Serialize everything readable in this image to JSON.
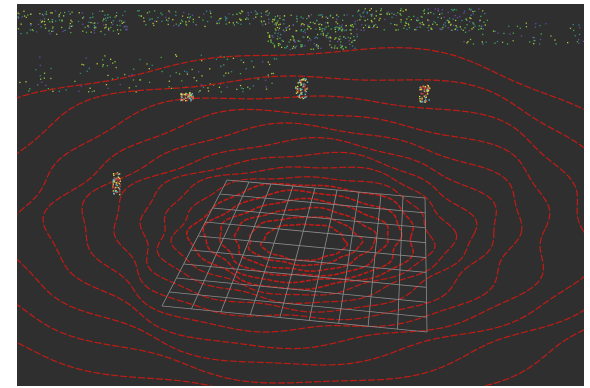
{
  "viewer": {
    "background_color": "#2f2f2f",
    "ground_ring_color": "#d21a12",
    "grid_color": "#8c8c8c",
    "building_point_colors": [
      "#3fae4a",
      "#8fbf3a",
      "#2f8a8f",
      "#6a4aa8",
      "#b9c93b"
    ],
    "pedestrian_point_colors": [
      "#d9d64a",
      "#5fc0c8",
      "#d04040"
    ]
  }
}
